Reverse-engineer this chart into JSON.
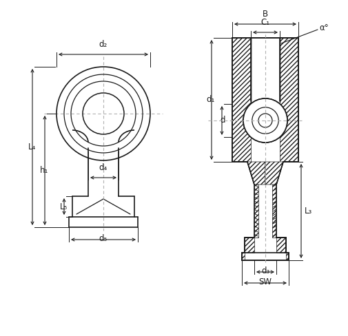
{
  "bg_color": "#ffffff",
  "lc": "#1a1a1a",
  "dc": "#1a1a1a",
  "cc": "#aaaaaa",
  "labels": {
    "d2": "d₂",
    "d4": "d₄",
    "d5": "d₅",
    "L4": "L₄",
    "h1": "h₁",
    "L5": "L₅",
    "B": "B",
    "C1": "C₁",
    "d1": "d₁",
    "d": "d",
    "a": "α°",
    "L3": "L₃",
    "d3": "d₃",
    "SW": "SW"
  },
  "fs": 8.5
}
